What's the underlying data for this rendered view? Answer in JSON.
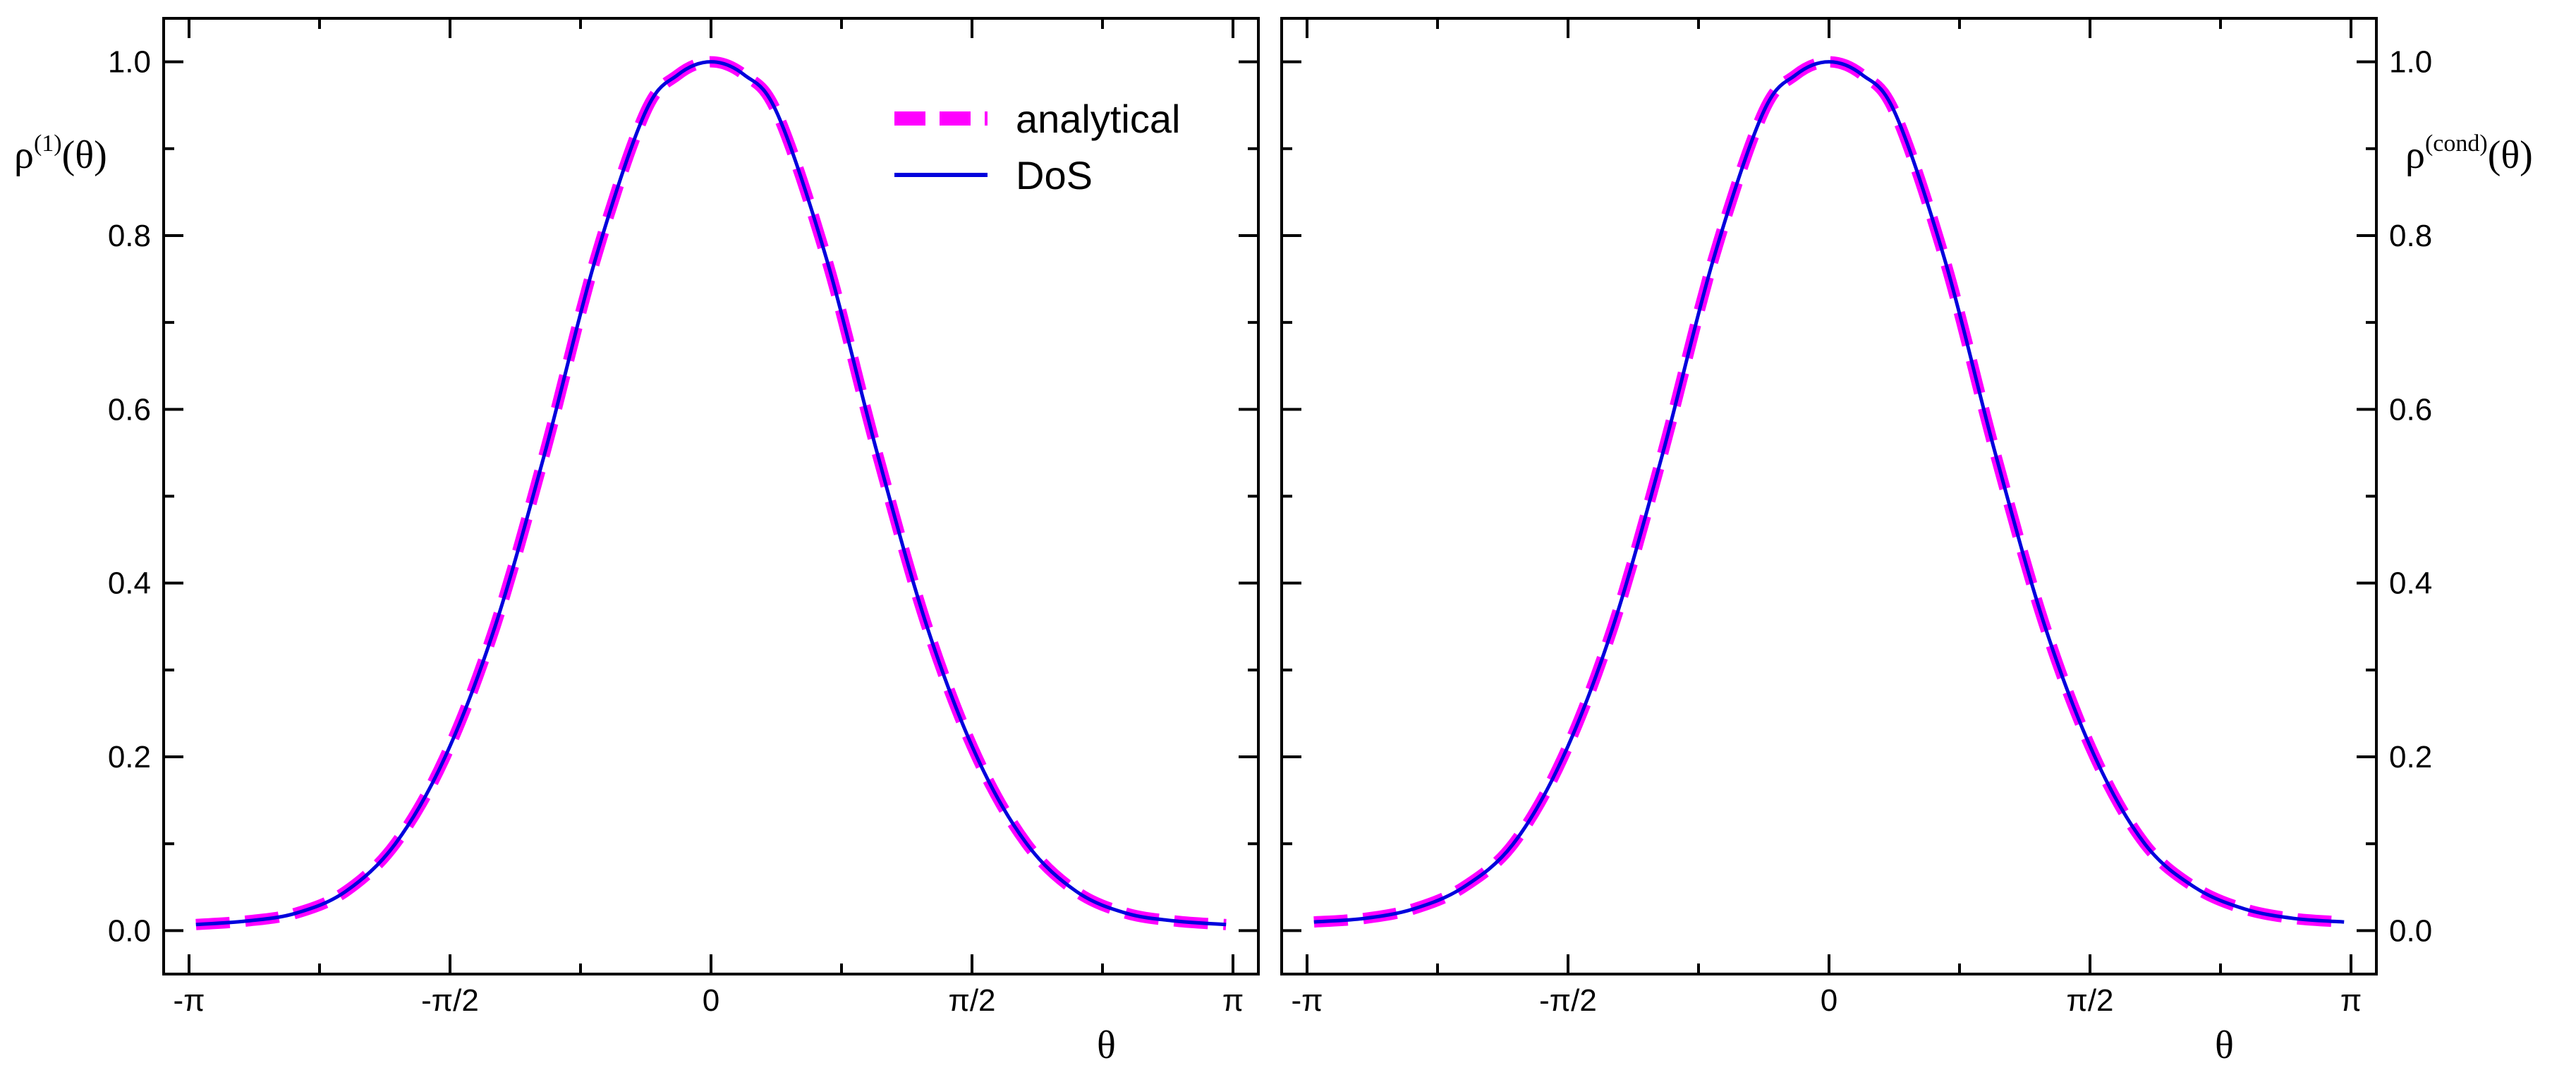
{
  "chart_data": [
    {
      "type": "line",
      "panel": "left",
      "ylabel": {
        "base": "ρ",
        "sup": "(1)",
        "arg": "(θ)"
      },
      "xlabel": "θ",
      "xlim": [
        -3.14159,
        3.14159
      ],
      "ylim": [
        -0.05,
        1.05
      ],
      "xticks": [
        {
          "value": -3.14159,
          "label": "-π"
        },
        {
          "value": -1.5708,
          "label": "-π/2"
        },
        {
          "value": 0,
          "label": "0"
        },
        {
          "value": 1.5708,
          "label": "π/2"
        },
        {
          "value": 3.14159,
          "label": "π"
        }
      ],
      "yticks": [
        {
          "value": 0.0,
          "label": "0.0"
        },
        {
          "value": 0.2,
          "label": "0.2"
        },
        {
          "value": 0.4,
          "label": "0.4"
        },
        {
          "value": 0.6,
          "label": "0.6"
        },
        {
          "value": 0.8,
          "label": "0.8"
        },
        {
          "value": 1.0,
          "label": "1.0"
        }
      ],
      "x": [
        -3.1,
        -2.8,
        -2.5,
        -2.2,
        -1.9,
        -1.6,
        -1.3,
        -1.0,
        -0.7,
        -0.4,
        -0.2,
        0,
        0.2,
        0.4,
        0.7,
        1.0,
        1.3,
        1.6,
        1.9,
        2.2,
        2.5,
        2.8,
        3.1
      ],
      "series": [
        {
          "name": "analytical",
          "style": "dashed",
          "color": "#ff00ff",
          "values": [
            0.007,
            0.011,
            0.02,
            0.045,
            0.1,
            0.2,
            0.35,
            0.55,
            0.77,
            0.94,
            0.985,
            1.0,
            0.985,
            0.94,
            0.77,
            0.55,
            0.35,
            0.2,
            0.1,
            0.045,
            0.02,
            0.011,
            0.007
          ]
        },
        {
          "name": "DoS",
          "style": "solid",
          "color": "#0000dd",
          "values": [
            0.007,
            0.011,
            0.02,
            0.045,
            0.1,
            0.2,
            0.35,
            0.55,
            0.77,
            0.94,
            0.985,
            1.0,
            0.985,
            0.94,
            0.77,
            0.55,
            0.35,
            0.2,
            0.1,
            0.045,
            0.02,
            0.011,
            0.007
          ]
        }
      ],
      "legend": "top-right"
    },
    {
      "type": "line",
      "panel": "right",
      "ylabel": {
        "base": "ρ",
        "sup": "(cond)",
        "arg": "(θ)"
      },
      "xlabel": "θ",
      "xlim": [
        -3.14159,
        3.14159
      ],
      "ylim": [
        -0.05,
        1.05
      ],
      "xticks": [
        {
          "value": -3.14159,
          "label": "-π"
        },
        {
          "value": -1.5708,
          "label": "-π/2"
        },
        {
          "value": 0,
          "label": "0"
        },
        {
          "value": 1.5708,
          "label": "π/2"
        },
        {
          "value": 3.14159,
          "label": "π"
        }
      ],
      "yticks": [
        {
          "value": 0.0,
          "label": "0.0"
        },
        {
          "value": 0.2,
          "label": "0.2"
        },
        {
          "value": 0.4,
          "label": "0.4"
        },
        {
          "value": 0.6,
          "label": "0.6"
        },
        {
          "value": 0.8,
          "label": "0.8"
        },
        {
          "value": 1.0,
          "label": "1.0"
        }
      ],
      "x": [
        -3.1,
        -2.8,
        -2.5,
        -2.2,
        -1.9,
        -1.6,
        -1.3,
        -1.0,
        -0.7,
        -0.4,
        -0.2,
        0,
        0.2,
        0.4,
        0.7,
        1.0,
        1.3,
        1.6,
        1.9,
        2.2,
        2.5,
        2.8,
        3.1
      ],
      "series": [
        {
          "name": "analytical",
          "style": "dashed",
          "color": "#ff00ff",
          "values": [
            0.01,
            0.014,
            0.025,
            0.05,
            0.1,
            0.2,
            0.35,
            0.55,
            0.77,
            0.94,
            0.985,
            1.0,
            0.985,
            0.94,
            0.77,
            0.55,
            0.35,
            0.2,
            0.1,
            0.05,
            0.025,
            0.014,
            0.01
          ]
        },
        {
          "name": "DoS",
          "style": "solid",
          "color": "#0000dd",
          "values": [
            0.01,
            0.014,
            0.025,
            0.05,
            0.1,
            0.2,
            0.35,
            0.55,
            0.77,
            0.94,
            0.985,
            1.0,
            0.985,
            0.94,
            0.77,
            0.55,
            0.35,
            0.2,
            0.1,
            0.05,
            0.025,
            0.014,
            0.01
          ]
        }
      ]
    }
  ]
}
